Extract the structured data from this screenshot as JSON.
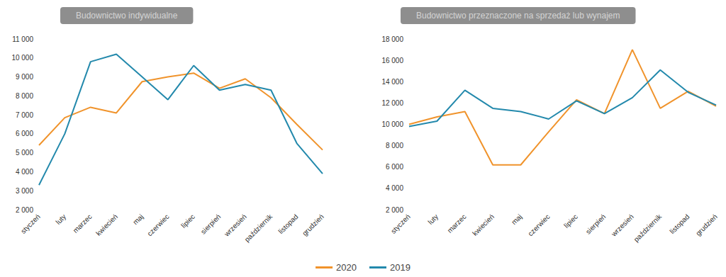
{
  "chart_data": [
    {
      "type": "line",
      "title": "Budownictwo indywidualne",
      "categories": [
        "styczeń",
        "luty",
        "marzec",
        "kwiecień",
        "maj",
        "czerwiec",
        "lipiec",
        "sierpień",
        "wrzesień",
        "październik",
        "listopad",
        "grudzień"
      ],
      "series": [
        {
          "name": "2020",
          "color": "#f0932b",
          "values": [
            5400,
            6850,
            7400,
            7100,
            8750,
            9000,
            9200,
            8400,
            8900,
            7900,
            6500,
            5150
          ]
        },
        {
          "name": "2019",
          "color": "#2389ac",
          "values": [
            3300,
            6000,
            9800,
            10200,
            9000,
            7800,
            9600,
            8300,
            8600,
            8300,
            5500,
            3900
          ]
        }
      ],
      "ylim": [
        2000,
        11000
      ],
      "yticks": [
        {
          "value": 2000,
          "label": "2 000"
        },
        {
          "value": 3000,
          "label": "3 000"
        },
        {
          "value": 4000,
          "label": "4 000"
        },
        {
          "value": 5000,
          "label": "5 000"
        },
        {
          "value": 6000,
          "label": "6 000"
        },
        {
          "value": 7000,
          "label": "7 000"
        },
        {
          "value": 8000,
          "label": "8 000"
        },
        {
          "value": 9000,
          "label": "9 000"
        },
        {
          "value": 10000,
          "label": "10 000"
        },
        {
          "value": 11000,
          "label": "11 000"
        }
      ],
      "grid": false,
      "legend": "bottom"
    },
    {
      "type": "line",
      "title": "Budownictwo przeznaczone na sprzedaż lub wynajem",
      "categories": [
        "styczeń",
        "luty",
        "marzec",
        "kwiecień",
        "maj",
        "czerwiec",
        "lipiec",
        "sierpień",
        "wrzesień",
        "październik",
        "listopad",
        "grudzień"
      ],
      "series": [
        {
          "name": "2020",
          "color": "#f0932b",
          "values": [
            10000,
            10700,
            11200,
            6200,
            6200,
            9300,
            12300,
            11000,
            17000,
            11500,
            13100,
            11700
          ]
        },
        {
          "name": "2019",
          "color": "#2389ac",
          "values": [
            9800,
            10300,
            13200,
            11500,
            11200,
            10500,
            12200,
            11000,
            12500,
            15100,
            13000,
            11800
          ]
        }
      ],
      "ylim": [
        2000,
        18000
      ],
      "yticks": [
        {
          "value": 2000,
          "label": "2 000"
        },
        {
          "value": 4000,
          "label": "4 000"
        },
        {
          "value": 6000,
          "label": "6 000"
        },
        {
          "value": 8000,
          "label": "8 000"
        },
        {
          "value": 10000,
          "label": "10 000"
        },
        {
          "value": 12000,
          "label": "12 000"
        },
        {
          "value": 14000,
          "label": "14 000"
        },
        {
          "value": 16000,
          "label": "16 000"
        },
        {
          "value": 18000,
          "label": "18 000"
        }
      ],
      "grid": false,
      "legend": "bottom"
    }
  ]
}
